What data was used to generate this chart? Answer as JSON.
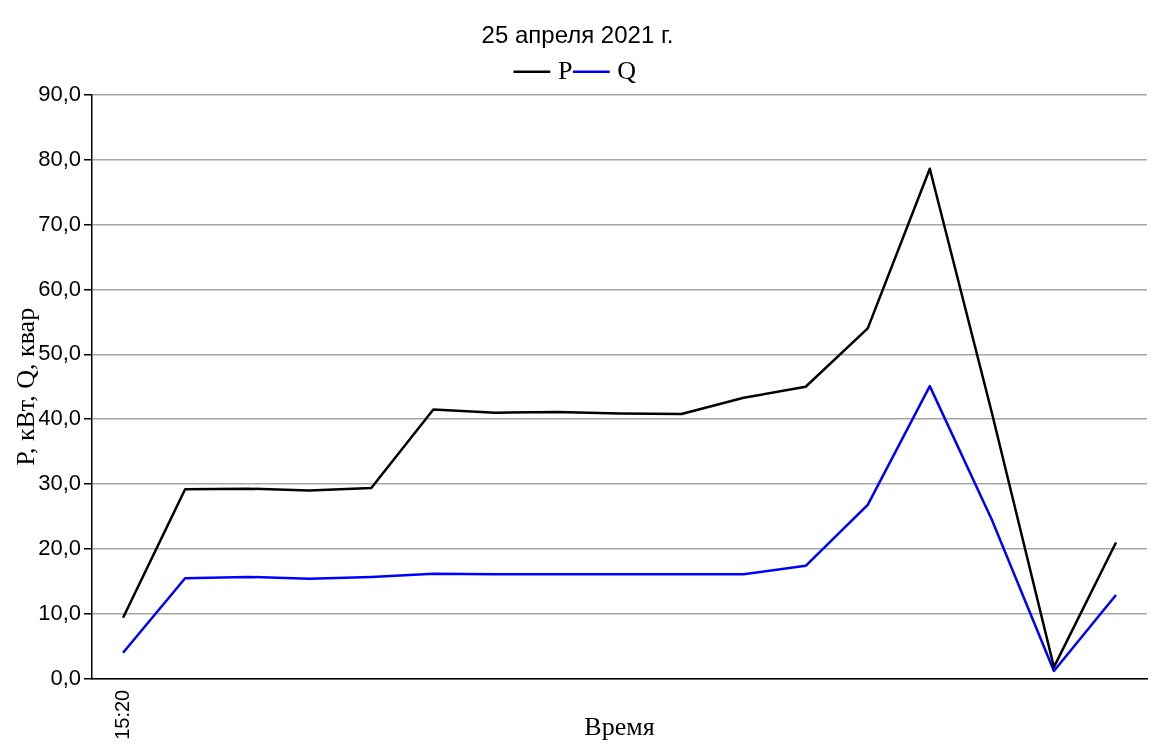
{
  "chart_data": {
    "type": "line",
    "title": "25 апреля 2021 г.",
    "xlabel": "Время",
    "ylabel": "P, кВт, Q, квар",
    "categories": [
      "15:20",
      null,
      null,
      null,
      null,
      null,
      null,
      null,
      null,
      null,
      null,
      null,
      null,
      null,
      null,
      null,
      null
    ],
    "series": [
      {
        "name": "P",
        "color": "#000000",
        "values": [
          9.4,
          29.2,
          29.3,
          29.0,
          29.4,
          41.5,
          41.0,
          41.1,
          40.9,
          40.8,
          43.3,
          45.0,
          54.0,
          78.6,
          41.0,
          1.8,
          21.0
        ]
      },
      {
        "name": "Q",
        "color": "#0000ff",
        "values": [
          4.0,
          15.5,
          15.7,
          15.4,
          15.7,
          16.2,
          16.1,
          16.1,
          16.1,
          16.1,
          16.1,
          17.4,
          26.8,
          45.1,
          24.5,
          1.2,
          12.9
        ]
      }
    ],
    "ylim": [
      0,
      90
    ],
    "yticks": [
      {
        "value": 0,
        "label": "0,0"
      },
      {
        "value": 10,
        "label": "10,0"
      },
      {
        "value": 20,
        "label": "20,0"
      },
      {
        "value": 30,
        "label": "30,0"
      },
      {
        "value": 40,
        "label": "40,0"
      },
      {
        "value": 50,
        "label": "50,0"
      },
      {
        "value": 60,
        "label": "60,0"
      },
      {
        "value": 70,
        "label": "70,0"
      },
      {
        "value": 80,
        "label": "80,0"
      },
      {
        "value": 90,
        "label": "90,0"
      }
    ],
    "grid": "y",
    "legend": "top",
    "marker": "none",
    "line_style": "solid"
  }
}
